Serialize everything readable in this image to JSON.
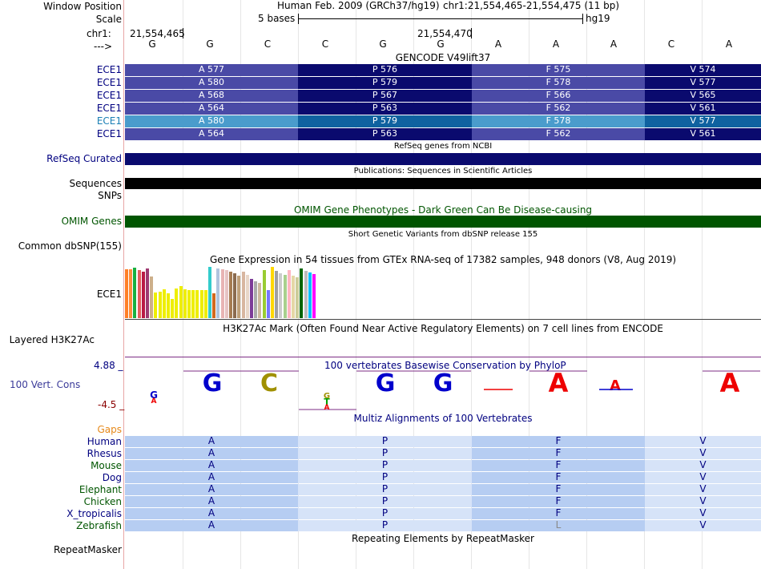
{
  "header": {
    "window_position_label": "Window Position",
    "scale_label": "Scale",
    "chr_label": "chr1:",
    "strand_label": "--->",
    "assembly": "Human Feb. 2009 (GRCh37/hg19)",
    "position": "chr1:21,554,465-21,554,475 (11 bp)",
    "scale_text": "5 bases",
    "db": "hg19",
    "coord_left": "21,554,465",
    "coord_mid": "21,554,470"
  },
  "bases": [
    "G",
    "G",
    "C",
    "C",
    "G",
    "G",
    "A",
    "A",
    "A",
    "C",
    "A"
  ],
  "gencode": {
    "title": "GENCODE V49lift37",
    "rows": [
      {
        "name": "ECE1",
        "highlight": false,
        "aa": [
          "A 577",
          "P 576",
          "F 575",
          "V 574"
        ]
      },
      {
        "name": "ECE1",
        "highlight": false,
        "aa": [
          "A 580",
          "P 579",
          "F 578",
          "V 577"
        ]
      },
      {
        "name": "ECE1",
        "highlight": false,
        "aa": [
          "A 568",
          "P 567",
          "F 566",
          "V 565"
        ]
      },
      {
        "name": "ECE1",
        "highlight": false,
        "aa": [
          "A 564",
          "P 563",
          "F 562",
          "V 561"
        ]
      },
      {
        "name": "ECE1",
        "highlight": true,
        "aa": [
          "A 580",
          "P 579",
          "F 578",
          "V 577"
        ]
      },
      {
        "name": "ECE1",
        "highlight": false,
        "aa": [
          "A 564",
          "P 563",
          "F 562",
          "V 561"
        ]
      }
    ]
  },
  "refseq": {
    "title": "RefSeq genes from NCBI",
    "label": "RefSeq Curated"
  },
  "publications": {
    "title": "Publications: Sequences in Scientific Articles",
    "label": "Sequences"
  },
  "snps": {
    "label": "SNPs"
  },
  "omim": {
    "title": "OMIM Gene Phenotypes - Dark Green Can Be Disease-causing",
    "label": "OMIM Genes"
  },
  "dbsnp": {
    "title": "Short Genetic Variants from dbSNP release 155",
    "label": "Common dbSNP(155)"
  },
  "gtex": {
    "title": "Gene Expression in 54 tissues from GTEx RNA-seq of 17382 samples, 948 donors (V8, Aug 2019)",
    "label": "ECE1",
    "bars": [
      {
        "h": 0.95,
        "c": "#ff7f27"
      },
      {
        "h": 0.95,
        "c": "#ff8d3c"
      },
      {
        "h": 0.98,
        "c": "#19b040"
      },
      {
        "h": 0.93,
        "c": "#e45f5f"
      },
      {
        "h": 0.9,
        "c": "#b91a45"
      },
      {
        "h": 0.97,
        "c": "#9e3a72"
      },
      {
        "h": 0.82,
        "c": "#cdaf8a"
      },
      {
        "h": 0.5,
        "c": "#eeee00"
      },
      {
        "h": 0.52,
        "c": "#eeee00"
      },
      {
        "h": 0.57,
        "c": "#eeee00"
      },
      {
        "h": 0.49,
        "c": "#eeee00"
      },
      {
        "h": 0.38,
        "c": "#eeee00"
      },
      {
        "h": 0.58,
        "c": "#eeee00"
      },
      {
        "h": 0.63,
        "c": "#eeee00"
      },
      {
        "h": 0.57,
        "c": "#eeee00"
      },
      {
        "h": 0.55,
        "c": "#eeee00"
      },
      {
        "h": 0.55,
        "c": "#eeee00"
      },
      {
        "h": 0.55,
        "c": "#eeee00"
      },
      {
        "h": 0.55,
        "c": "#eeee00"
      },
      {
        "h": 0.55,
        "c": "#eeee00"
      },
      {
        "h": 1.0,
        "c": "#33cccc"
      },
      {
        "h": 0.48,
        "c": "#d2691e"
      },
      {
        "h": 0.97,
        "c": "#b0c4de"
      },
      {
        "h": 0.95,
        "c": "#e8b4b4"
      },
      {
        "h": 0.93,
        "c": "#e6c3c3"
      },
      {
        "h": 0.9,
        "c": "#a67c52"
      },
      {
        "h": 0.87,
        "c": "#8b6b4f"
      },
      {
        "h": 0.83,
        "c": "#bfa07a"
      },
      {
        "h": 0.9,
        "c": "#d8b6a0"
      },
      {
        "h": 0.85,
        "c": "#e8d6c8"
      },
      {
        "h": 0.77,
        "c": "#7d3c98"
      },
      {
        "h": 0.72,
        "c": "#aaaaaa"
      },
      {
        "h": 0.69,
        "c": "#cdb79e"
      },
      {
        "h": 0.94,
        "c": "#99cc33"
      },
      {
        "h": 0.55,
        "c": "#7777ff"
      },
      {
        "h": 1.0,
        "c": "#ffd700"
      },
      {
        "h": 0.92,
        "c": "#a0a0a0"
      },
      {
        "h": 0.88,
        "c": "#cccccc"
      },
      {
        "h": 0.85,
        "c": "#a8d08d"
      },
      {
        "h": 0.93,
        "c": "#ffb6c1"
      },
      {
        "h": 0.83,
        "c": "#e5d7a5"
      },
      {
        "h": 0.8,
        "c": "#cccc99"
      },
      {
        "h": 0.97,
        "c": "#006400"
      },
      {
        "h": 0.92,
        "c": "#bbbbbb"
      },
      {
        "h": 0.89,
        "c": "#00bfff"
      },
      {
        "h": 0.86,
        "c": "#ff00ff"
      }
    ]
  },
  "h3k27ac": {
    "title": "H3K27Ac Mark (Often Found Near Active Regulatory Elements) on 7 cell lines from ENCODE",
    "label": "Layered H3K27Ac"
  },
  "phylop": {
    "title": "100 vertebrates Basewise Conservation by PhyloP",
    "label": "100 Vert. Cons",
    "max": "4.88 _",
    "min": "-4.5 _"
  },
  "multiz": {
    "title": "Multiz Alignments of 100 Vertebrates",
    "gaps_label": "Gaps",
    "species": [
      {
        "name": "Human",
        "aa": [
          "A",
          "P",
          "F",
          "V"
        ],
        "color": "#000080"
      },
      {
        "name": "Rhesus",
        "aa": [
          "A",
          "P",
          "F",
          "V"
        ],
        "color": "#000080"
      },
      {
        "name": "Mouse",
        "aa": [
          "A",
          "P",
          "F",
          "V"
        ],
        "color": "#005500"
      },
      {
        "name": "Dog",
        "aa": [
          "A",
          "P",
          "F",
          "V"
        ],
        "color": "#000080"
      },
      {
        "name": "Elephant",
        "aa": [
          "A",
          "P",
          "F",
          "V"
        ],
        "color": "#005500"
      },
      {
        "name": "Chicken",
        "aa": [
          "A",
          "P",
          "F",
          "V"
        ],
        "color": "#005500"
      },
      {
        "name": "X_tropicalis",
        "aa": [
          "A",
          "P",
          "F",
          "V"
        ],
        "color": "#000080"
      },
      {
        "name": "Zebrafish",
        "aa": [
          "A",
          "P",
          "L",
          "V"
        ],
        "color": "#005500"
      }
    ]
  },
  "repeatmasker": {
    "title": "Repeating Elements by RepeatMasker",
    "label": "RepeatMasker"
  },
  "colors": {
    "gene_dark": "#0a0a6e",
    "gene_light": "#4a4aa6",
    "gene_hi_dark": "#0f62a0",
    "gene_hi_light": "#4a9ccc",
    "omim_green": "#005500",
    "multiz_dark": "#b6cdf2",
    "multiz_light": "#d6e3f8"
  }
}
